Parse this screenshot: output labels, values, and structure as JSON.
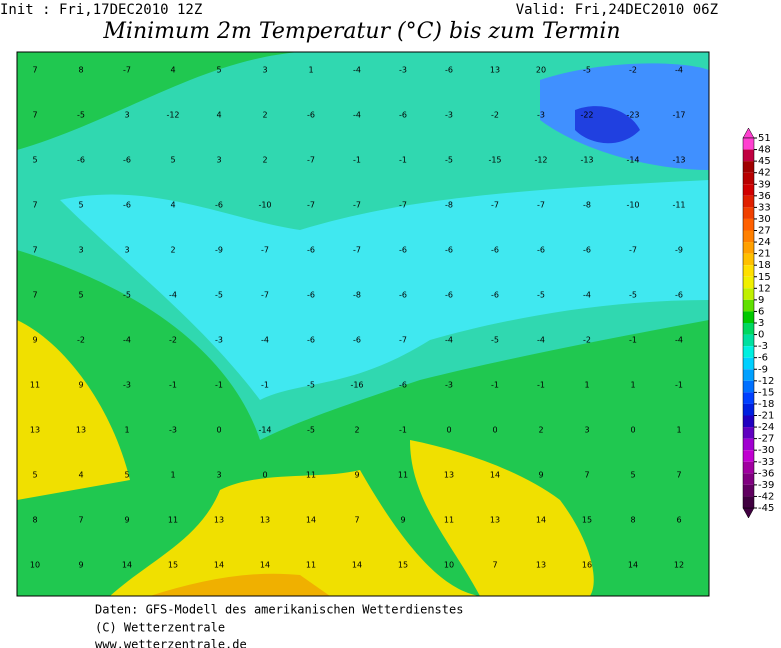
{
  "header": {
    "init": "Init : Fri,17DEC2010 12Z",
    "valid": "Valid: Fri,24DEC2010 06Z",
    "title": "Minimum 2m Temperatur (°C) bis zum Termin"
  },
  "map": {
    "grid_rows": [
      [
        7,
        8,
        -7,
        4,
        5,
        3,
        1,
        -4,
        -3,
        -6,
        13,
        20,
        -5,
        -2,
        -4
      ],
      [
        7,
        -5,
        3,
        -12,
        4,
        2,
        -6,
        -4,
        -6,
        -3,
        -2,
        -3,
        -22,
        -23,
        -17
      ],
      [
        5,
        -6,
        -6,
        5,
        3,
        2,
        -7,
        -1,
        -1,
        -5,
        -15,
        -12,
        -13,
        -14,
        -13
      ],
      [
        7,
        5,
        -6,
        4,
        -6,
        -10,
        -7,
        -7,
        -7,
        -8,
        -7,
        -7,
        -8,
        -10,
        -11
      ],
      [
        7,
        3,
        3,
        2,
        -9,
        -7,
        -6,
        -7,
        -6,
        -6,
        -6,
        -6,
        -6,
        -7,
        -9
      ],
      [
        7,
        5,
        -5,
        -4,
        -5,
        -7,
        -6,
        -8,
        -6,
        -6,
        -6,
        -5,
        -4,
        -5,
        -6
      ],
      [
        9,
        -2,
        -4,
        -2,
        -3,
        -4,
        -6,
        -6,
        -7,
        -4,
        -5,
        -4,
        -2,
        -1,
        -4
      ],
      [
        11,
        9,
        -3,
        -1,
        -1,
        -1,
        -5,
        -16,
        -6,
        -3,
        -1,
        -1,
        1,
        1,
        -1
      ],
      [
        13,
        13,
        1,
        -3,
        0,
        -14,
        -5,
        2,
        -1,
        0,
        0,
        2,
        3,
        0,
        1
      ],
      [
        5,
        4,
        5,
        1,
        3,
        0,
        11,
        9,
        11,
        13,
        14,
        9,
        7,
        5,
        7
      ],
      [
        8,
        7,
        9,
        11,
        13,
        13,
        14,
        7,
        9,
        11,
        13,
        14,
        15,
        8,
        6
      ],
      [
        10,
        9,
        14,
        15,
        14,
        14,
        11,
        14,
        15,
        10,
        7,
        13,
        16,
        14,
        12
      ]
    ]
  },
  "colorbar": {
    "levels": [
      51,
      48,
      45,
      42,
      39,
      36,
      33,
      30,
      27,
      24,
      21,
      18,
      15,
      12,
      9,
      6,
      3,
      0,
      -3,
      -6,
      -9,
      -12,
      -15,
      -18,
      -21,
      -24,
      -27,
      -30,
      -33,
      -36,
      -39,
      -42,
      -45
    ],
    "colors": [
      "#ff40d0",
      "#c00040",
      "#a00000",
      "#b80000",
      "#d00000",
      "#e02000",
      "#f04000",
      "#ff6000",
      "#ff8000",
      "#ffa000",
      "#ffc000",
      "#ffe000",
      "#f0f000",
      "#c0f000",
      "#60e000",
      "#00c800",
      "#00d860",
      "#00e0a0",
      "#00f0e0",
      "#00d0ff",
      "#00a0ff",
      "#0070ff",
      "#0040ff",
      "#0020e0",
      "#2000c0",
      "#6000c0",
      "#a000d0",
      "#c000d0",
      "#a000a0",
      "#800080",
      "#600060",
      "#400040"
    ]
  },
  "footer": {
    "lines": [
      "Daten: GFS-Modell des amerikanischen Wetterdienstes",
      "(C) Wetterzentrale",
      "www.wetterzentrale.de"
    ]
  }
}
